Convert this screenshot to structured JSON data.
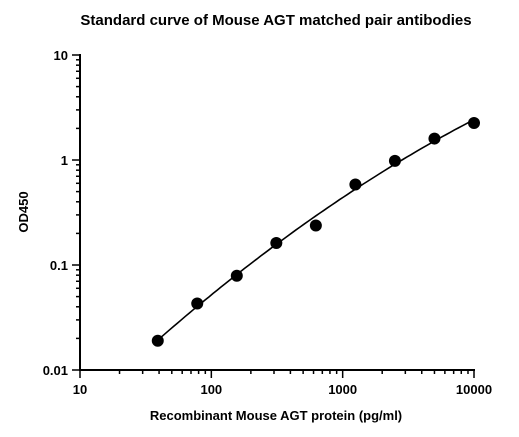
{
  "chart_data": {
    "type": "scatter",
    "title": "Standard curve of Mouse AGT matched pair antibodies",
    "xlabel": "Recombinant Mouse AGT protein (pg/ml)",
    "ylabel": "OD450",
    "xscale": "log",
    "yscale": "log",
    "xlim": [
      10,
      10000
    ],
    "ylim": [
      0.01,
      10
    ],
    "xticks": [
      10,
      100,
      1000,
      10000
    ],
    "xtick_labels": [
      "10",
      "100",
      "1000",
      "10000"
    ],
    "yticks": [
      0.01,
      0.1,
      1,
      10
    ],
    "ytick_labels": [
      "0.01",
      "0.1",
      "1",
      "10"
    ],
    "grid": false,
    "legend": "none",
    "series": [
      {
        "x": [
          39.1,
          78.1,
          156.3,
          312.5,
          625,
          1250,
          2500,
          5000,
          10000
        ],
        "y": [
          0.019,
          0.043,
          0.079,
          0.162,
          0.238,
          0.585,
          0.98,
          1.6,
          2.25
        ],
        "marker": "filled-circle",
        "color": "#000000",
        "fit_curve": true
      }
    ]
  }
}
